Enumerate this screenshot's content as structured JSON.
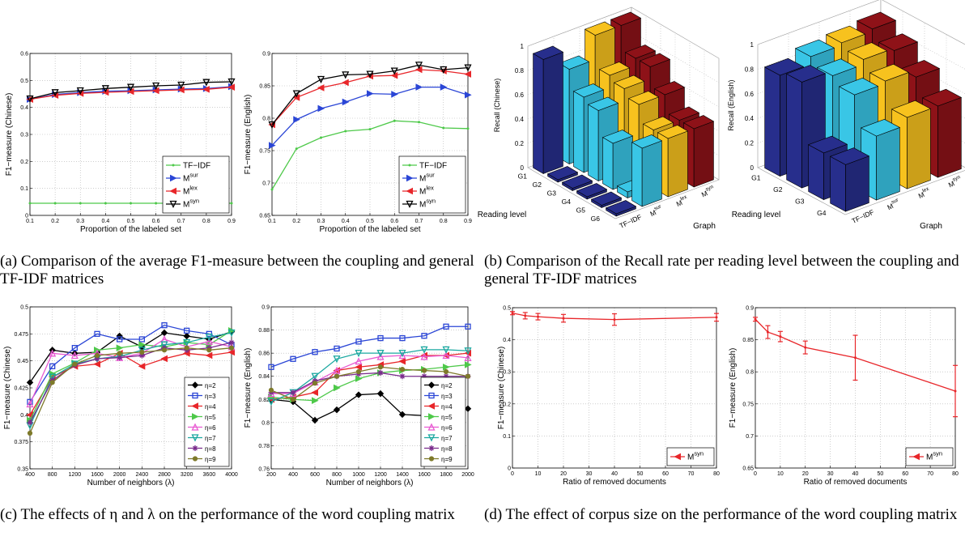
{
  "captions": {
    "a": "(a) Comparison of the average F1-measure between the coupling and general TF-IDF matrices",
    "b": "(b) Comparison of the Recall rate per reading level between the coupling and general TF-IDF matrices",
    "c": "(c) The effects of η and λ on the performance of the word coupling matrix",
    "d": "(d) The effect of corpus size on the performance of the word coupling matrix"
  },
  "colors": {
    "tfidf": "#4ec94a",
    "msur": "#2b46d6",
    "mlex": "#e8262a",
    "msyn": "#000000",
    "eta2": "#000000",
    "eta3": "#2b46d6",
    "eta4": "#e8262a",
    "eta5": "#4ec94a",
    "eta6": "#e85ad2",
    "eta7": "#1aa8a0",
    "eta8": "#7a2c8c",
    "eta9": "#7e7a2a",
    "bar_tfidf": "#272e8c",
    "bar_msur": "#39c6e6",
    "bar_mlex": "#f7c21e",
    "bar_graph": "#8e1218"
  },
  "chart_data": [
    {
      "id": "a1",
      "type": "line",
      "xlabel": "Proportion of the labeled set",
      "ylabel": "F1−measure (Chinese)",
      "xlim": [
        0.1,
        0.9
      ],
      "ylim": [
        0,
        0.6
      ],
      "xticks": [
        "0.1",
        "0.2",
        "0.3",
        "0.4",
        "0.5",
        "0.6",
        "0.7",
        "0.8",
        "0.9"
      ],
      "yticks": [
        "0",
        "0.1",
        "0.2",
        "0.3",
        "0.4",
        "0.5",
        "0.6"
      ],
      "x": [
        0.1,
        0.2,
        0.3,
        0.4,
        0.5,
        0.6,
        0.7,
        0.8,
        0.9
      ],
      "series": [
        {
          "name": "TF−IDF",
          "key": "tfidf",
          "values": [
            0.045,
            0.045,
            0.045,
            0.045,
            0.045,
            0.045,
            0.045,
            0.045,
            0.045
          ]
        },
        {
          "name": "M^sur",
          "key": "msur",
          "values": [
            0.43,
            0.448,
            0.455,
            0.46,
            0.462,
            0.465,
            0.468,
            0.47,
            0.477
          ]
        },
        {
          "name": "M^lex",
          "key": "mlex",
          "values": [
            0.43,
            0.445,
            0.452,
            0.456,
            0.459,
            0.462,
            0.465,
            0.467,
            0.475
          ]
        },
        {
          "name": "M^syn",
          "key": "msyn",
          "values": [
            0.432,
            0.455,
            0.462,
            0.47,
            0.475,
            0.48,
            0.483,
            0.493,
            0.495
          ]
        }
      ],
      "legend": "bottom-right"
    },
    {
      "id": "a2",
      "type": "line",
      "xlabel": "Proportion of the labeled set",
      "ylabel": "F1−measure (English)",
      "xlim": [
        0.1,
        0.9
      ],
      "ylim": [
        0.65,
        0.9
      ],
      "xticks": [
        "0.1",
        "0.2",
        "0.3",
        "0.4",
        "0.5",
        "0.6",
        "0.7",
        "0.8",
        "0.9"
      ],
      "yticks": [
        "0.65",
        "0.7",
        "0.75",
        "0.8",
        "0.85",
        "0.9"
      ],
      "x": [
        0.1,
        0.2,
        0.3,
        0.4,
        0.5,
        0.6,
        0.7,
        0.8,
        0.9
      ],
      "series": [
        {
          "name": "TF−IDF",
          "key": "tfidf",
          "values": [
            0.69,
            0.753,
            0.77,
            0.78,
            0.783,
            0.796,
            0.794,
            0.785,
            0.784
          ]
        },
        {
          "name": "M^sur",
          "key": "msur",
          "values": [
            0.758,
            0.798,
            0.815,
            0.825,
            0.838,
            0.837,
            0.848,
            0.848,
            0.836
          ]
        },
        {
          "name": "M^lex",
          "key": "mlex",
          "values": [
            0.79,
            0.832,
            0.847,
            0.855,
            0.865,
            0.866,
            0.875,
            0.873,
            0.868
          ]
        },
        {
          "name": "M^syn",
          "key": "msyn",
          "values": [
            0.79,
            0.838,
            0.86,
            0.867,
            0.868,
            0.873,
            0.882,
            0.875,
            0.878
          ]
        }
      ],
      "legend": "bottom-right"
    },
    {
      "id": "b1",
      "type": "bar3d",
      "zlabel": "Recall (Chinese)",
      "xlabel": "Reading level",
      "ylabel": "Graph",
      "zticks": [
        "0",
        "0.2",
        "0.4",
        "0.6",
        "0.8",
        "1"
      ],
      "levels": [
        "G1",
        "G2",
        "G3",
        "G4",
        "G5",
        "G6"
      ],
      "methods": [
        "TF−IDF",
        "M^sur",
        "M^lex",
        "M^syn"
      ],
      "values": [
        [
          0.94,
          0.02,
          0.02,
          0.02,
          0.02,
          0.02
        ],
        [
          0.78,
          0.62,
          0.58,
          0.38,
          0.05,
          0.48
        ],
        [
          0.98,
          0.72,
          0.68,
          0.62,
          0.48,
          0.48
        ],
        [
          0.98,
          0.78,
          0.78,
          0.62,
          0.48,
          0.48
        ]
      ]
    },
    {
      "id": "b2",
      "type": "bar3d",
      "zlabel": "Recall (English)",
      "xlabel": "Reading level",
      "ylabel": "Graph",
      "zticks": [
        "0",
        "0.2",
        "0.4",
        "0.6",
        "0.8",
        "1"
      ],
      "levels": [
        "G1",
        "G2",
        "G3",
        "G4"
      ],
      "methods": [
        "TF−IDF",
        "M^sur",
        "M^lex",
        "M^syn"
      ],
      "values": [
        [
          0.82,
          0.86,
          0.38,
          0.38
        ],
        [
          0.88,
          0.82,
          0.76,
          0.52
        ],
        [
          0.9,
          0.86,
          0.78,
          0.58
        ],
        [
          0.92,
          0.84,
          0.72,
          0.58
        ]
      ]
    },
    {
      "id": "c1",
      "type": "line",
      "xlabel": "Number of neighbors (λ)",
      "ylabel": "F1−measure (Chinese)",
      "xlim": [
        400,
        4000
      ],
      "ylim": [
        0.35,
        0.5
      ],
      "xticks": [
        "400",
        "800",
        "1200",
        "1600",
        "2000",
        "2400",
        "2800",
        "3200",
        "3600",
        "4000"
      ],
      "yticks": [
        "0.35",
        "0.375",
        "0.4",
        "0.425",
        "0.45",
        "0.475",
        "0.5"
      ],
      "x": [
        400,
        800,
        1200,
        1600,
        2000,
        2400,
        2800,
        3200,
        3600,
        4000
      ],
      "series": [
        {
          "name": "η=2",
          "key": "eta2",
          "marker": "diamond",
          "values": [
            0.43,
            0.46,
            0.457,
            0.458,
            0.473,
            0.463,
            0.476,
            0.473,
            0.47,
            0.477
          ]
        },
        {
          "name": "η=3",
          "key": "eta3",
          "marker": "square",
          "values": [
            0.412,
            0.445,
            0.462,
            0.475,
            0.47,
            0.47,
            0.483,
            0.478,
            0.475,
            0.465
          ]
        },
        {
          "name": "η=4",
          "key": "eta4",
          "marker": "tri-left",
          "values": [
            0.4,
            0.435,
            0.445,
            0.447,
            0.457,
            0.445,
            0.452,
            0.457,
            0.455,
            0.458
          ]
        },
        {
          "name": "η=5",
          "key": "eta5",
          "marker": "tri-right",
          "values": [
            0.395,
            0.438,
            0.448,
            0.46,
            0.462,
            0.465,
            0.463,
            0.467,
            0.465,
            0.478
          ]
        },
        {
          "name": "η=6",
          "key": "eta6",
          "marker": "tri-up",
          "values": [
            0.41,
            0.457,
            0.455,
            0.457,
            0.453,
            0.457,
            0.47,
            0.463,
            0.468,
            0.463
          ]
        },
        {
          "name": "η=7",
          "key": "eta7",
          "marker": "tri-down",
          "values": [
            0.39,
            0.435,
            0.447,
            0.452,
            0.454,
            0.46,
            0.465,
            0.467,
            0.472,
            0.476
          ]
        },
        {
          "name": "η=8",
          "key": "eta8",
          "marker": "star",
          "values": [
            0.393,
            0.432,
            0.446,
            0.452,
            0.453,
            0.455,
            0.462,
            0.46,
            0.462,
            0.467
          ]
        },
        {
          "name": "η=9",
          "key": "eta9",
          "marker": "circle",
          "values": [
            0.383,
            0.43,
            0.447,
            0.455,
            0.457,
            0.458,
            0.46,
            0.462,
            0.46,
            0.462
          ]
        }
      ],
      "legend": "bottom-right"
    },
    {
      "id": "c2",
      "type": "line",
      "xlabel": "Number of neighbors (λ)",
      "ylabel": "F1−measure (English)",
      "xlim": [
        200,
        2000
      ],
      "ylim": [
        0.76,
        0.9
      ],
      "xticks": [
        "200",
        "400",
        "600",
        "800",
        "1000",
        "1200",
        "1400",
        "1600",
        "1800",
        "2000"
      ],
      "yticks": [
        "0.76",
        "0.78",
        "0.8",
        "0.82",
        "0.84",
        "0.86",
        "0.88",
        "0.9"
      ],
      "x": [
        200,
        400,
        600,
        800,
        1000,
        1200,
        1400,
        1600,
        1800,
        2000
      ],
      "series": [
        {
          "name": "η=2",
          "key": "eta2",
          "marker": "diamond",
          "values": [
            0.82,
            0.818,
            0.802,
            0.811,
            0.824,
            0.825,
            0.807,
            0.806,
            0.807,
            0.812
          ]
        },
        {
          "name": "η=3",
          "key": "eta3",
          "marker": "square",
          "values": [
            0.848,
            0.855,
            0.861,
            0.864,
            0.87,
            0.873,
            0.873,
            0.875,
            0.883,
            0.883
          ]
        },
        {
          "name": "η=4",
          "key": "eta4",
          "marker": "tri-left",
          "values": [
            0.82,
            0.822,
            0.826,
            0.845,
            0.848,
            0.85,
            0.853,
            0.858,
            0.858,
            0.86
          ]
        },
        {
          "name": "η=5",
          "key": "eta5",
          "marker": "tri-right",
          "values": [
            0.822,
            0.82,
            0.819,
            0.83,
            0.838,
            0.843,
            0.845,
            0.846,
            0.848,
            0.85
          ]
        },
        {
          "name": "η=6",
          "key": "eta6",
          "marker": "tri-up",
          "values": [
            0.825,
            0.825,
            0.835,
            0.845,
            0.853,
            0.857,
            0.858,
            0.857,
            0.858,
            0.856
          ]
        },
        {
          "name": "η=7",
          "key": "eta7",
          "marker": "tri-down",
          "values": [
            0.818,
            0.826,
            0.84,
            0.855,
            0.86,
            0.86,
            0.86,
            0.863,
            0.863,
            0.862
          ]
        },
        {
          "name": "η=8",
          "key": "eta8",
          "marker": "star",
          "values": [
            0.826,
            0.826,
            0.836,
            0.84,
            0.842,
            0.843,
            0.84,
            0.84,
            0.84,
            0.84
          ]
        },
        {
          "name": "η=9",
          "key": "eta9",
          "marker": "circle",
          "values": [
            0.828,
            0.82,
            0.834,
            0.84,
            0.844,
            0.848,
            0.846,
            0.845,
            0.844,
            0.84
          ]
        }
      ],
      "legend": "bottom-right"
    },
    {
      "id": "d1",
      "type": "line",
      "xlabel": "Ratio of removed documents",
      "ylabel": "F1−measure (Chinese)",
      "xlim": [
        0,
        80
      ],
      "ylim": [
        0,
        0.5
      ],
      "xticks": [
        "0",
        "10",
        "20",
        "30",
        "40",
        "50",
        "60",
        "70",
        "80"
      ],
      "yticks": [
        "0",
        "0.1",
        "0.2",
        "0.3",
        "0.4",
        "0.5"
      ],
      "x": [
        0,
        5,
        10,
        20,
        40,
        80
      ],
      "series": [
        {
          "name": "M^syn",
          "key": "mlex",
          "values": [
            0.483,
            0.475,
            0.472,
            0.467,
            0.463,
            0.47
          ],
          "errors": [
            0.005,
            0.01,
            0.01,
            0.012,
            0.018,
            0.012
          ]
        }
      ],
      "legend": "bottom-right"
    },
    {
      "id": "d2",
      "type": "line",
      "xlabel": "Ratio of removed documents",
      "ylabel": "F1−measure (English)",
      "xlim": [
        0,
        80
      ],
      "ylim": [
        0.65,
        0.9
      ],
      "xticks": [
        "0",
        "10",
        "20",
        "30",
        "40",
        "50",
        "60",
        "70",
        "80"
      ],
      "yticks": [
        "0.65",
        "0.7",
        "0.75",
        "0.8",
        "0.85",
        "0.9"
      ],
      "x": [
        0,
        5,
        10,
        20,
        40,
        80
      ],
      "series": [
        {
          "name": "M^syn",
          "key": "mlex",
          "values": [
            0.882,
            0.862,
            0.855,
            0.838,
            0.822,
            0.77
          ],
          "errors": [
            0.003,
            0.01,
            0.008,
            0.01,
            0.035,
            0.04
          ]
        }
      ],
      "legend": "bottom-right"
    }
  ]
}
